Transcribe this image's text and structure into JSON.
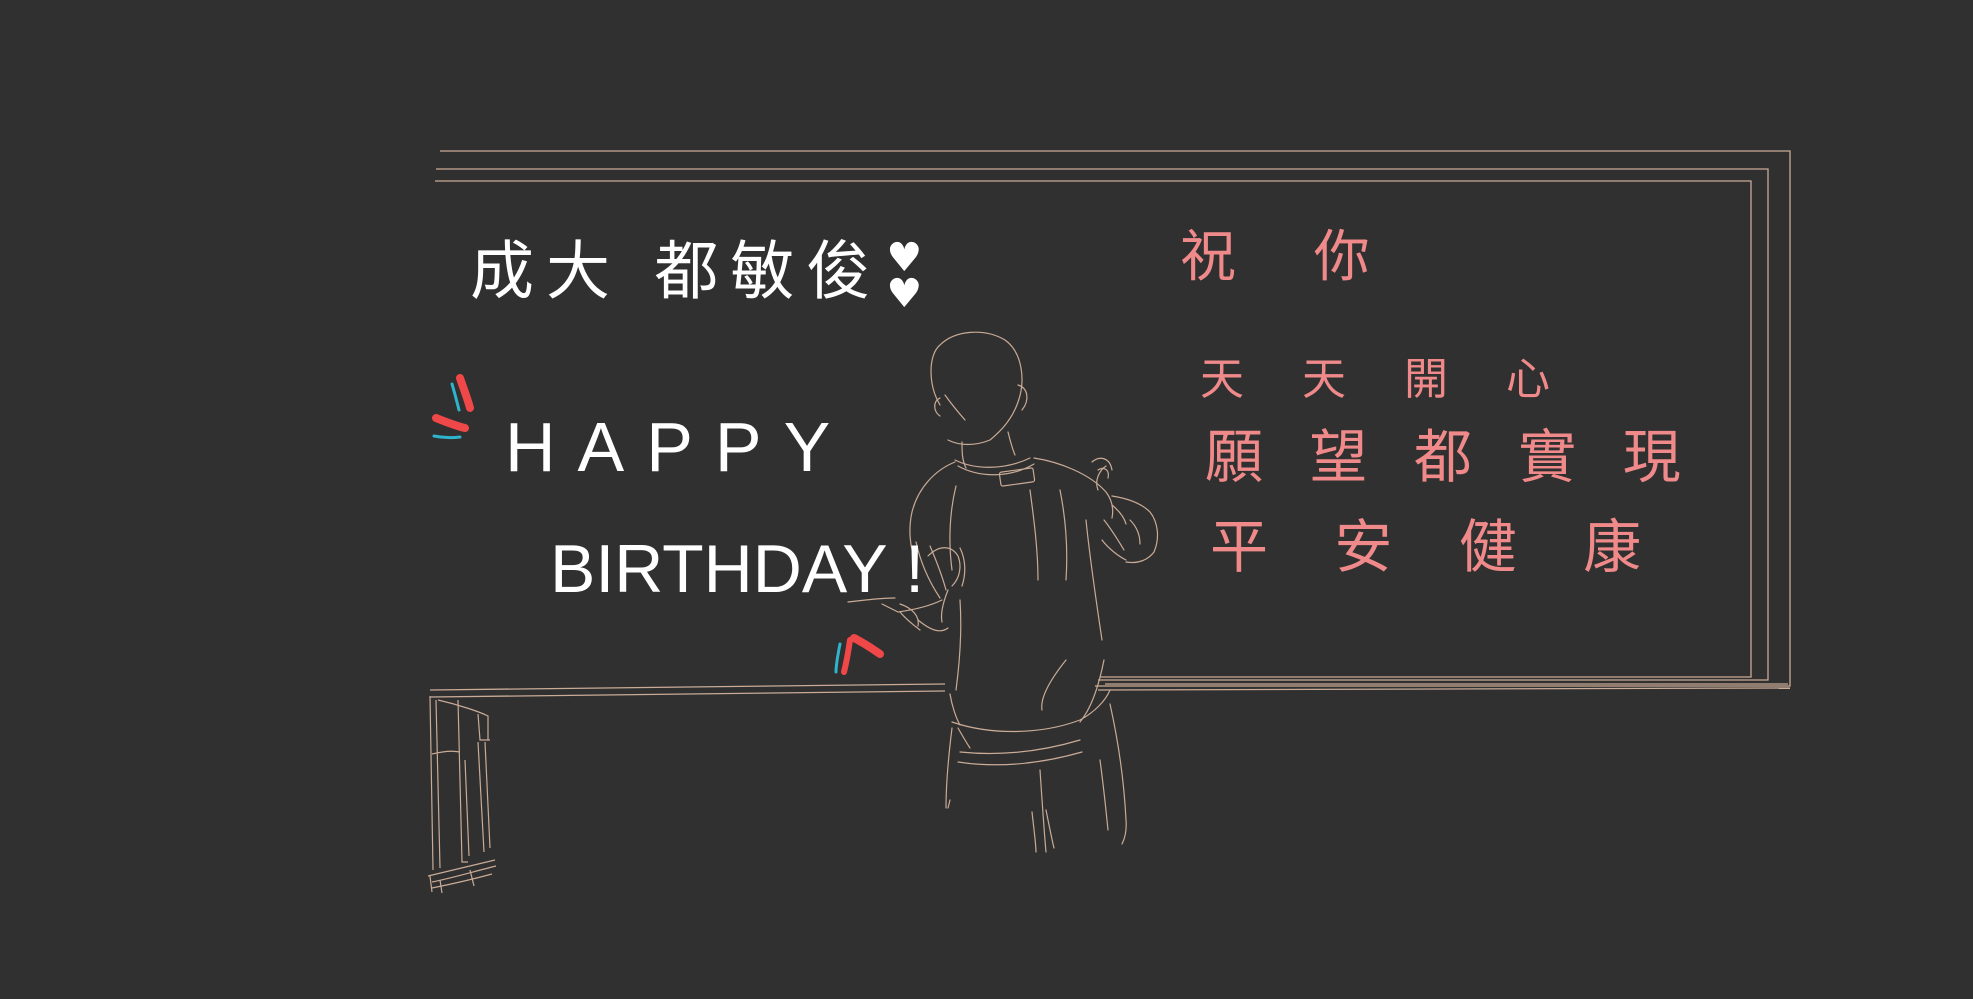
{
  "board": {
    "name_line": "成大 都敏俊",
    "heart_mark": "♥\n♥",
    "happy": "HAPPY",
    "birthday": "BIRTHDAY !",
    "wish_title": "祝 你",
    "wishes": [
      "天 天 開 心",
      "願 望 都 實 現",
      "平 安 健 康"
    ]
  },
  "colors": {
    "background": "#303030",
    "line_art": "#c9ab96",
    "chalk_white": "#ffffff",
    "chalk_pink": "#f08a8a",
    "accent_red": "#f04848",
    "accent_blue": "#2fb4cc"
  }
}
